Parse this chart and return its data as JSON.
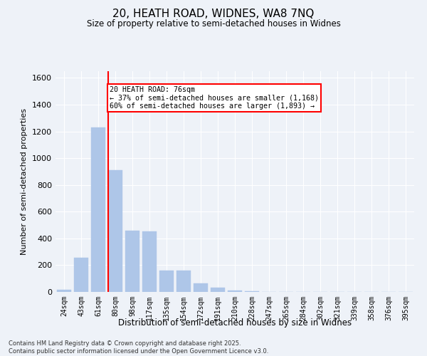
{
  "title_line1": "20, HEATH ROAD, WIDNES, WA8 7NQ",
  "title_line2": "Size of property relative to semi-detached houses in Widnes",
  "xlabel": "Distribution of semi-detached houses by size in Widnes",
  "ylabel": "Number of semi-detached properties",
  "categories": [
    "24sqm",
    "43sqm",
    "61sqm",
    "80sqm",
    "98sqm",
    "117sqm",
    "135sqm",
    "154sqm",
    "172sqm",
    "191sqm",
    "210sqm",
    "228sqm",
    "247sqm",
    "265sqm",
    "284sqm",
    "302sqm",
    "321sqm",
    "339sqm",
    "358sqm",
    "376sqm",
    "395sqm"
  ],
  "values": [
    15,
    255,
    1230,
    910,
    460,
    455,
    160,
    160,
    65,
    30,
    10,
    5,
    0,
    0,
    0,
    0,
    0,
    0,
    0,
    0,
    0
  ],
  "bar_color": "#aec6e8",
  "bar_edge_color": "#aec6e8",
  "vline_color": "red",
  "vline_position": 2.575,
  "ylim": [
    0,
    1650
  ],
  "yticks": [
    0,
    200,
    400,
    600,
    800,
    1000,
    1200,
    1400,
    1600
  ],
  "annotation_title": "20 HEATH ROAD: 76sqm",
  "annotation_line1": "← 37% of semi-detached houses are smaller (1,168)",
  "annotation_line2": "60% of semi-detached houses are larger (1,893) →",
  "annotation_box_color": "white",
  "annotation_box_edge_color": "red",
  "footer_line1": "Contains HM Land Registry data © Crown copyright and database right 2025.",
  "footer_line2": "Contains public sector information licensed under the Open Government Licence v3.0.",
  "background_color": "#eef2f8",
  "plot_bg_color": "#eef2f8",
  "fig_width": 6.0,
  "fig_height": 5.0,
  "dpi": 100
}
